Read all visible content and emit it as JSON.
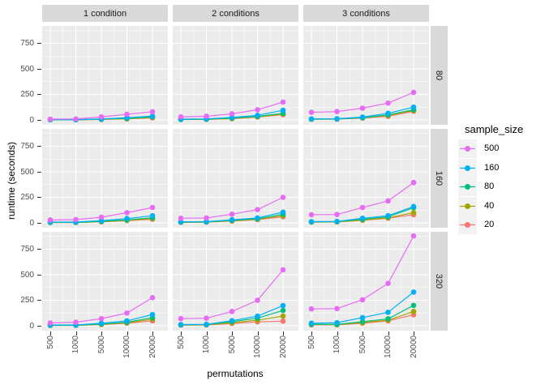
{
  "chart_data": {
    "type": "line",
    "title": "",
    "xlabel": "permutations",
    "ylabel": "runtime (seconds)",
    "x": [
      500,
      1000,
      5000,
      10000,
      20000
    ],
    "x_tick_labels": [
      "500",
      "1000",
      "5000",
      "10000",
      "20000"
    ],
    "y_ticks": [
      0,
      250,
      500,
      750
    ],
    "y_minor_ticks": [
      125,
      375,
      625,
      875
    ],
    "ylim": [
      -48,
      915
    ],
    "grid": true,
    "facet_cols": [
      "1 condition",
      "2 conditions",
      "3 conditions"
    ],
    "facet_rows": [
      "80",
      "160",
      "320"
    ],
    "legend": {
      "title": "sample_size",
      "position": "right",
      "entries": [
        {
          "label": "500",
          "color": "#E76BF3"
        },
        {
          "label": "160",
          "color": "#00B0F6"
        },
        {
          "label": "80",
          "color": "#00BF7D"
        },
        {
          "label": "40",
          "color": "#A3A500"
        },
        {
          "label": "20",
          "color": "#F8766D"
        }
      ]
    },
    "colors": {
      "500": "#E76BF3",
      "160": "#00B0F6",
      "80": "#00BF7D",
      "40": "#A3A500",
      "20": "#F8766D"
    },
    "draw_order": [
      "20",
      "40",
      "80",
      "160",
      "500"
    ],
    "theme": {
      "panel_bg": "#EBEBEB",
      "strip_bg": "#D9D9D9",
      "grid_color": "#FFFFFF",
      "axis_text_color": "#4D4D4D",
      "tick_mark_color": "#333333"
    },
    "panels": [
      {
        "row": "80",
        "col": "1 condition",
        "series": {
          "500": [
            8,
            10,
            30,
            55,
            80
          ],
          "160": [
            3,
            3,
            10,
            22,
            38
          ],
          "80": [
            2,
            2,
            8,
            15,
            30
          ],
          "40": [
            2,
            2,
            6,
            12,
            26
          ],
          "20": [
            2,
            2,
            4,
            10,
            20
          ]
        }
      },
      {
        "row": "80",
        "col": "2 conditions",
        "series": {
          "500": [
            30,
            36,
            60,
            100,
            175
          ],
          "160": [
            8,
            10,
            25,
            45,
            95
          ],
          "80": [
            5,
            8,
            18,
            35,
            65
          ],
          "40": [
            5,
            6,
            15,
            30,
            58
          ],
          "20": [
            4,
            5,
            12,
            28,
            52
          ]
        }
      },
      {
        "row": "80",
        "col": "3 conditions",
        "series": {
          "500": [
            75,
            82,
            115,
            165,
            270
          ],
          "160": [
            10,
            12,
            28,
            65,
            125
          ],
          "80": [
            8,
            10,
            22,
            50,
            100
          ],
          "40": [
            8,
            9,
            20,
            45,
            92
          ],
          "20": [
            7,
            8,
            18,
            35,
            85
          ]
        }
      },
      {
        "row": "160",
        "col": "1 condition",
        "series": {
          "500": [
            28,
            32,
            55,
            100,
            150
          ],
          "160": [
            8,
            8,
            22,
            42,
            70
          ],
          "80": [
            5,
            5,
            15,
            30,
            50
          ],
          "40": [
            4,
            4,
            12,
            25,
            42
          ],
          "20": [
            4,
            4,
            10,
            22,
            36
          ]
        }
      },
      {
        "row": "160",
        "col": "2 conditions",
        "series": {
          "500": [
            45,
            48,
            85,
            130,
            250
          ],
          "160": [
            10,
            12,
            30,
            48,
            105
          ],
          "80": [
            8,
            10,
            25,
            40,
            85
          ],
          "40": [
            6,
            8,
            20,
            35,
            70
          ],
          "20": [
            5,
            7,
            18,
            32,
            60
          ]
        }
      },
      {
        "row": "160",
        "col": "3 conditions",
        "series": {
          "500": [
            80,
            82,
            150,
            215,
            395
          ],
          "160": [
            12,
            14,
            45,
            70,
            160
          ],
          "80": [
            10,
            12,
            35,
            60,
            148
          ],
          "40": [
            8,
            10,
            28,
            50,
            100
          ],
          "20": [
            7,
            9,
            25,
            45,
            80
          ]
        }
      },
      {
        "row": "320",
        "col": "1 condition",
        "series": {
          "500": [
            28,
            35,
            70,
            125,
            275
          ],
          "160": [
            8,
            8,
            25,
            48,
            110
          ],
          "80": [
            5,
            6,
            18,
            35,
            80
          ],
          "40": [
            4,
            5,
            15,
            30,
            65
          ],
          "20": [
            4,
            4,
            12,
            25,
            48
          ]
        }
      },
      {
        "row": "320",
        "col": "2 conditions",
        "series": {
          "500": [
            70,
            74,
            140,
            250,
            548
          ],
          "160": [
            12,
            14,
            50,
            95,
            198
          ],
          "80": [
            10,
            12,
            40,
            75,
            150
          ],
          "40": [
            8,
            10,
            30,
            55,
            95
          ],
          "20": [
            6,
            8,
            22,
            38,
            45
          ]
        }
      },
      {
        "row": "320",
        "col": "3 conditions",
        "series": {
          "500": [
            165,
            168,
            255,
            415,
            880
          ],
          "160": [
            25,
            30,
            80,
            132,
            330
          ],
          "80": [
            15,
            14,
            40,
            68,
            200
          ],
          "40": [
            12,
            11,
            32,
            55,
            140
          ],
          "20": [
            9,
            9,
            25,
            48,
            108
          ]
        }
      }
    ]
  }
}
